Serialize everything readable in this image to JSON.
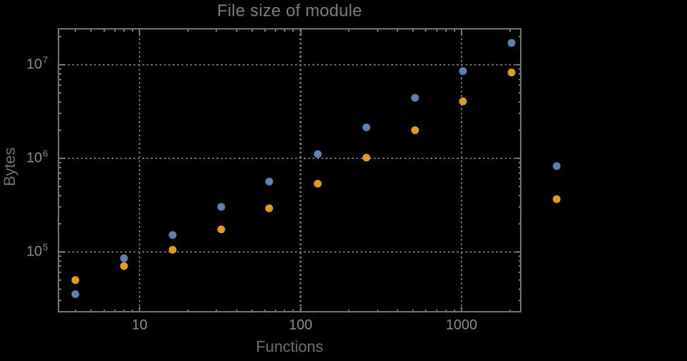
{
  "chart_data": {
    "type": "scatter",
    "title": "File size of module",
    "xlabel": "Functions",
    "ylabel": "Bytes",
    "x_scale": "log",
    "y_scale": "log",
    "xlim": [
      3.1,
      2355
    ],
    "ylim": [
      22500,
      24600000
    ],
    "grid": "dotted-at-major-ticks",
    "legend": "none",
    "x_major_ticks": {
      "values": [
        10,
        100,
        1000
      ],
      "labels": [
        "10",
        "100",
        "1000"
      ]
    },
    "y_major_ticks": {
      "values": [
        100000,
        1000000,
        10000000
      ],
      "base": "10",
      "exponents": [
        "5",
        "6",
        "7"
      ]
    },
    "series": [
      {
        "id": "series-blue",
        "color": "#5e81b5",
        "points": [
          [
            4,
            35000
          ],
          [
            8,
            85000
          ],
          [
            16,
            150000
          ],
          [
            32,
            300000
          ],
          [
            64,
            560000
          ],
          [
            128,
            1100000
          ],
          [
            256,
            2150000
          ],
          [
            512,
            4400000
          ],
          [
            1024,
            8600000
          ],
          [
            2048,
            17000000
          ],
          [
            3900,
            830000
          ]
        ]
      },
      {
        "id": "series-orange",
        "color": "#e19c24",
        "points": [
          [
            4,
            50000
          ],
          [
            8,
            70000
          ],
          [
            16,
            105000
          ],
          [
            32,
            175000
          ],
          [
            64,
            290000
          ],
          [
            128,
            540000
          ],
          [
            256,
            1020000
          ],
          [
            512,
            2000000
          ],
          [
            1024,
            4050000
          ],
          [
            2048,
            8300000
          ],
          [
            3900,
            365000
          ]
        ]
      }
    ]
  },
  "colors": {
    "background": "#000000",
    "frame": "#757575",
    "grid": "#6e6e6e",
    "title": "#7c7c7c",
    "axis_label": "#6f6f6f",
    "tick_label": "#8c8c8c"
  }
}
